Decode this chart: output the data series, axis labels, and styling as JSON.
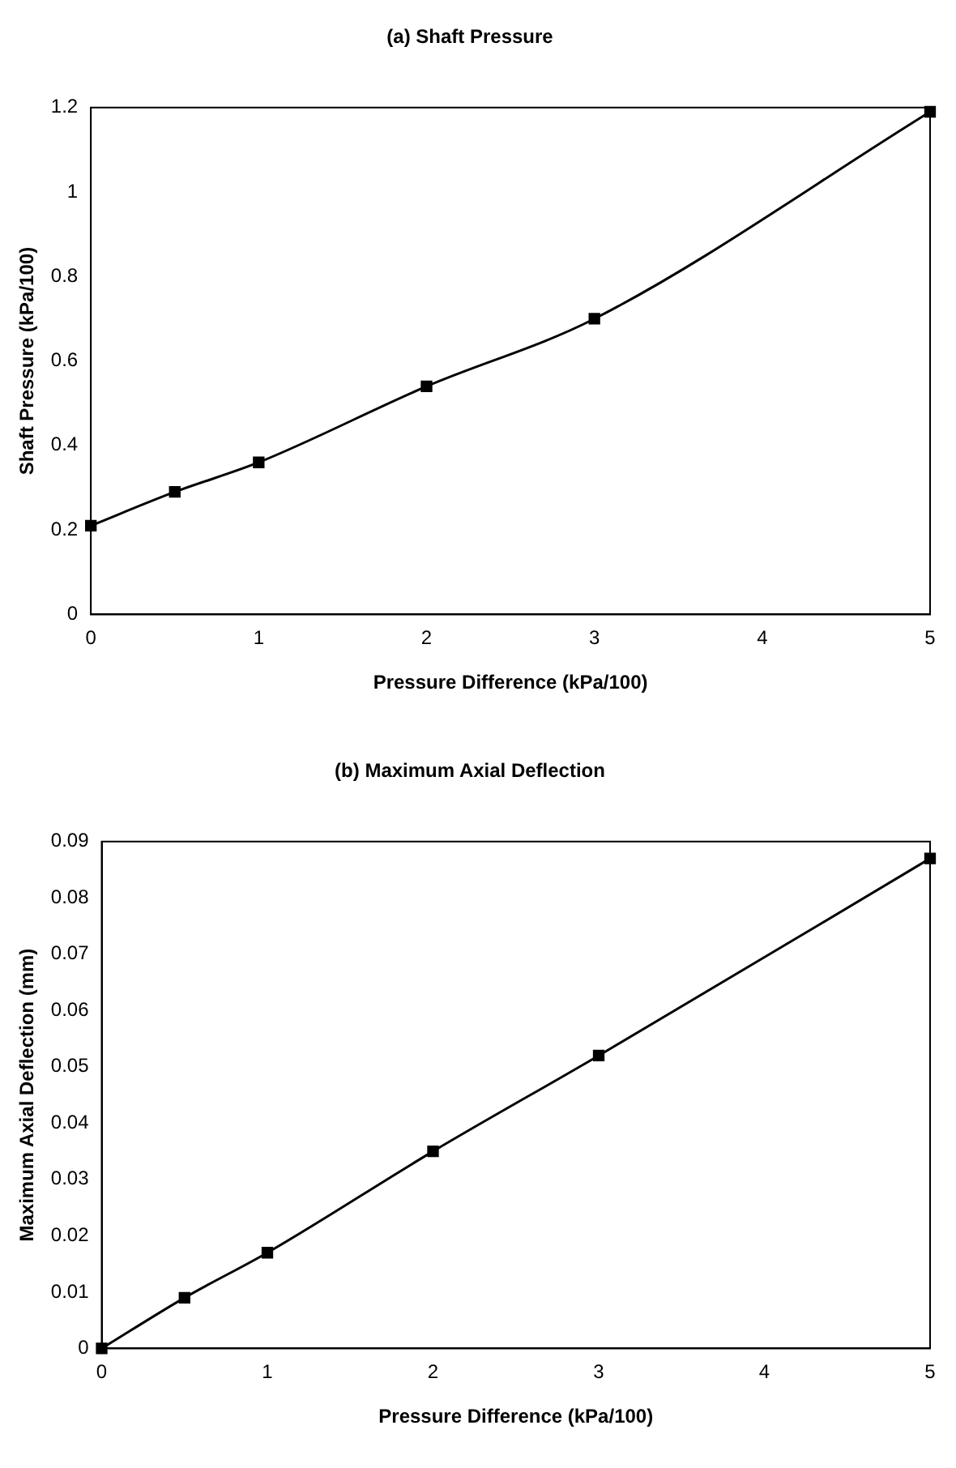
{
  "chart_data": [
    {
      "type": "line",
      "title": "(a) Shaft Pressure",
      "xlabel": "Pressure Difference (kPa/100)",
      "ylabel": "Shaft Pressure (kPa/100)",
      "x": [
        0,
        0.5,
        1,
        2,
        3,
        5
      ],
      "series": [
        {
          "color": "#000000",
          "values": [
            0.21,
            0.29,
            0.36,
            0.54,
            0.7,
            1.19
          ]
        }
      ],
      "xlim": [
        0,
        5
      ],
      "xticks": [
        0,
        1,
        2,
        3,
        4,
        5
      ],
      "ylim": [
        0,
        1.2
      ],
      "yticks": [
        0,
        0.2,
        0.4,
        0.6,
        0.8,
        1,
        1.2
      ],
      "grid": false,
      "legend": false,
      "marker": "square",
      "line_style": "solid"
    },
    {
      "type": "line",
      "title": "(b) Maximum Axial Deflection",
      "xlabel": "Pressure Difference (kPa/100)",
      "ylabel": "Maximum Axial Deflection (mm)",
      "x": [
        0,
        0.5,
        1,
        2,
        3,
        5
      ],
      "series": [
        {
          "color": "#000000",
          "values": [
            0,
            0.009,
            0.017,
            0.035,
            0.052,
            0.087
          ]
        }
      ],
      "xlim": [
        0,
        5
      ],
      "xticks": [
        0,
        1,
        2,
        3,
        4,
        5
      ],
      "ylim": [
        0,
        0.09
      ],
      "yticks": [
        0,
        0.01,
        0.02,
        0.03,
        0.04,
        0.05,
        0.06,
        0.07,
        0.08,
        0.09
      ],
      "grid": false,
      "legend": false,
      "marker": "square",
      "line_style": "solid"
    }
  ]
}
